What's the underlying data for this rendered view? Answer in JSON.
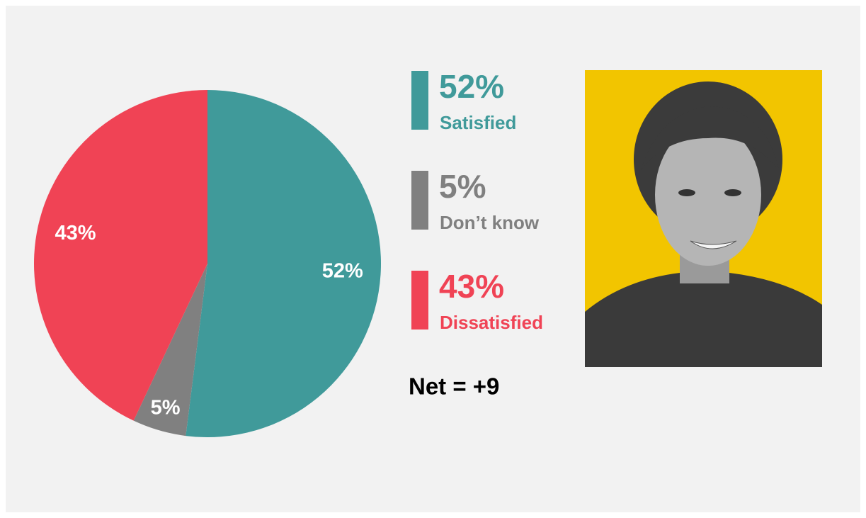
{
  "chart_data": {
    "type": "pie",
    "categories": [
      "Satisfied",
      "Don’t know",
      "Dissatisfied"
    ],
    "values": [
      52,
      5,
      43
    ],
    "value_labels": [
      "52%",
      "5%",
      "43%"
    ],
    "colors": [
      "#409a9a",
      "#808080",
      "#f04355"
    ],
    "annotation": "Net = +9"
  }
}
